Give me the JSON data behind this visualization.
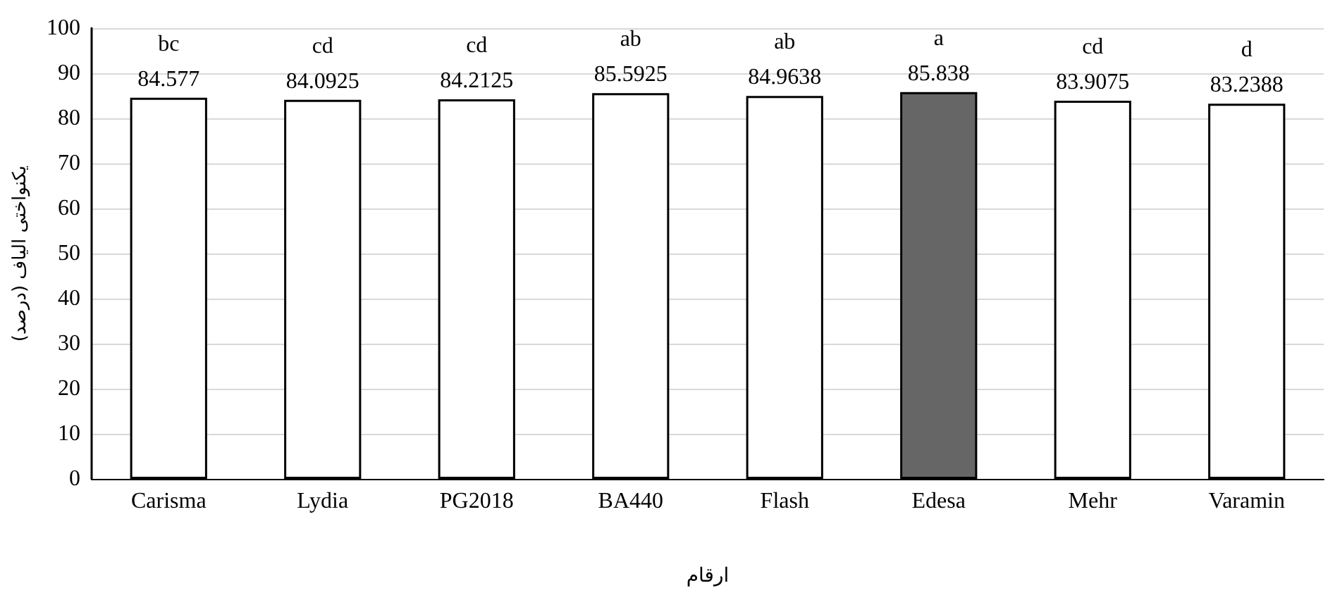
{
  "chart_data": {
    "type": "bar",
    "categories": [
      "Carisma",
      "Lydia",
      "PG2018",
      "BA440",
      "Flash",
      "Edesa",
      "Mehr",
      "Varamin"
    ],
    "values": [
      84.577,
      84.0925,
      84.2125,
      85.5925,
      84.9638,
      85.838,
      83.9075,
      83.2388
    ],
    "colors": [
      "#ffffff",
      "#ffffff",
      "#ffffff",
      "#ffffff",
      "#ffffff",
      "#666666",
      "#ffffff",
      "#ffffff"
    ],
    "data_labels": true,
    "annotations": [
      {
        "text": "bc",
        "x": "Carisma",
        "y": 84.577
      },
      {
        "text": "cd",
        "x": "Lydia",
        "y": 84.0925
      },
      {
        "text": "cd",
        "x": "PG2018",
        "y": 84.2125
      },
      {
        "text": "ab",
        "x": "BA440",
        "y": 85.5925
      },
      {
        "text": "ab",
        "x": "Flash",
        "y": 84.9638
      },
      {
        "text": "a",
        "x": "Edesa",
        "y": 85.838
      },
      {
        "text": "cd",
        "x": "Mehr",
        "y": 83.9075
      },
      {
        "text": "d",
        "x": "Varamin",
        "y": 83.2388
      }
    ],
    "xlabel": "ارقام",
    "ylabel": "یکنواختی الیاف (درصد)",
    "ylim": [
      0,
      100
    ],
    "yticks": [
      0,
      10,
      20,
      30,
      40,
      50,
      60,
      70,
      80,
      90,
      100
    ],
    "grid": "y"
  }
}
